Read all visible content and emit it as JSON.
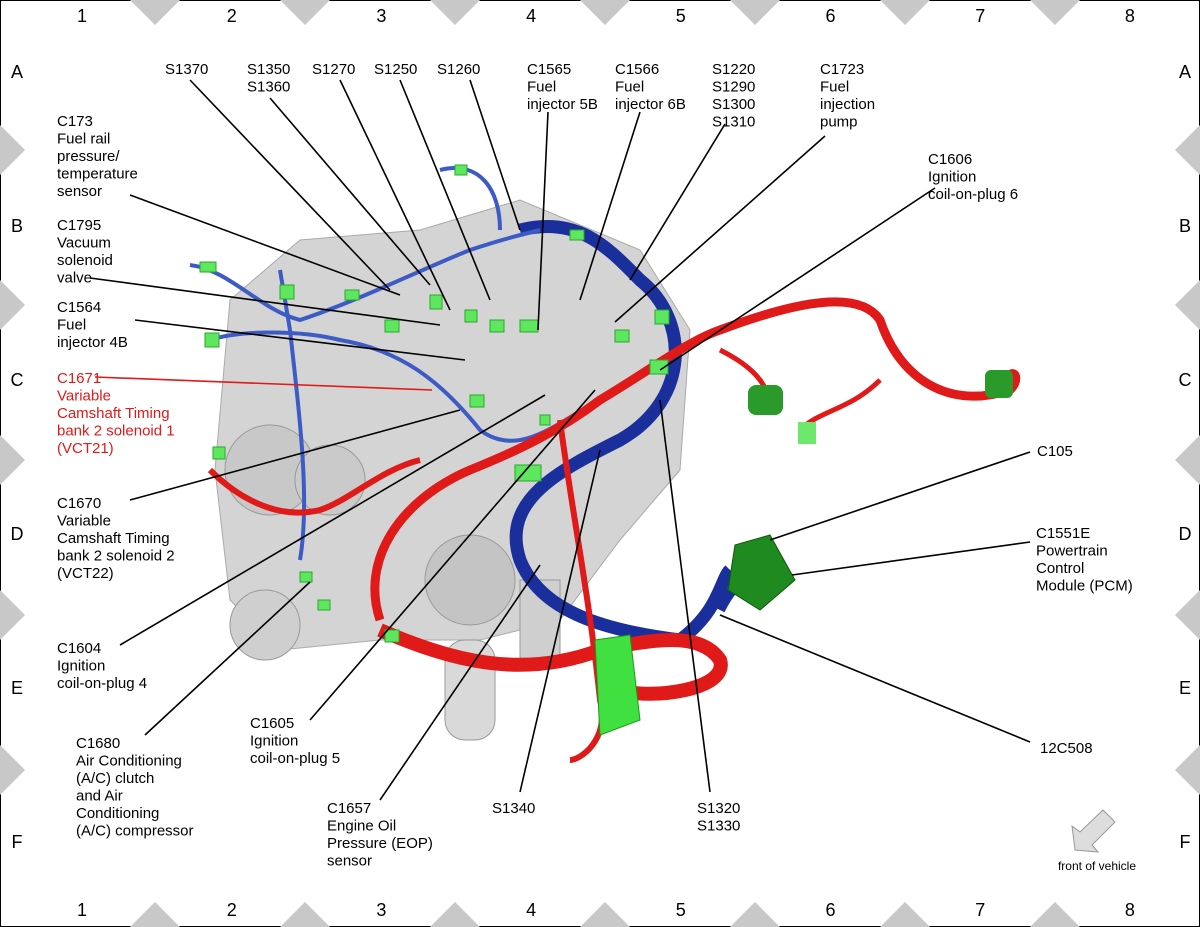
{
  "grid": {
    "columns": [
      "1",
      "2",
      "3",
      "4",
      "5",
      "6",
      "7",
      "8"
    ],
    "rows": [
      "A",
      "B",
      "C",
      "D",
      "E",
      "F"
    ]
  },
  "callouts": [
    {
      "lines": [
        "S1370"
      ]
    },
    {
      "lines": [
        "S1350",
        "S1360"
      ]
    },
    {
      "lines": [
        "S1270"
      ]
    },
    {
      "lines": [
        "S1250"
      ]
    },
    {
      "lines": [
        "S1260"
      ]
    },
    {
      "lines": [
        "C1565",
        "Fuel",
        "injector 5B"
      ]
    },
    {
      "lines": [
        "C1566",
        "Fuel",
        "injector 6B"
      ]
    },
    {
      "lines": [
        "S1220",
        "S1290",
        "S1300",
        "S1310"
      ]
    },
    {
      "lines": [
        "C1723",
        "Fuel",
        "injection",
        "pump"
      ]
    },
    {
      "lines": [
        "C173",
        "Fuel rail",
        "pressure/",
        "temperature",
        "sensor"
      ]
    },
    {
      "lines": [
        "C1606",
        "Ignition",
        "coil-on-plug 6"
      ]
    },
    {
      "lines": [
        "C1795",
        "Vacuum",
        "solenoid",
        "valve"
      ]
    },
    {
      "lines": [
        "C1564",
        "Fuel",
        "injector 4B"
      ]
    },
    {
      "lines": [
        "C1671",
        "Variable",
        "Camshaft Timing",
        "bank 2 solenoid 1",
        "(VCT21)"
      ]
    },
    {
      "lines": [
        "C1670",
        "Variable",
        "Camshaft Timing",
        "bank 2 solenoid 2",
        "(VCT22)"
      ]
    },
    {
      "lines": [
        "C105"
      ]
    },
    {
      "lines": [
        "C1551E",
        "Powertrain",
        "Control",
        "Module (PCM)"
      ]
    },
    {
      "lines": [
        "C1604",
        "Ignition",
        "coil-on-plug 4"
      ]
    },
    {
      "lines": [
        "C1680",
        "Air Conditioning",
        "(A/C) clutch",
        "and Air",
        "Conditioning",
        "(A/C) compressor"
      ]
    },
    {
      "lines": [
        "C1605",
        "Ignition",
        "coil-on-plug 5"
      ]
    },
    {
      "lines": [
        "12C508"
      ]
    },
    {
      "lines": [
        "C1657",
        "Engine Oil",
        "Pressure (EOP)",
        "sensor"
      ]
    },
    {
      "lines": [
        "S1340"
      ]
    },
    {
      "lines": [
        "S1320",
        "S1330"
      ]
    }
  ],
  "footer": {
    "note": "front of vehicle"
  }
}
